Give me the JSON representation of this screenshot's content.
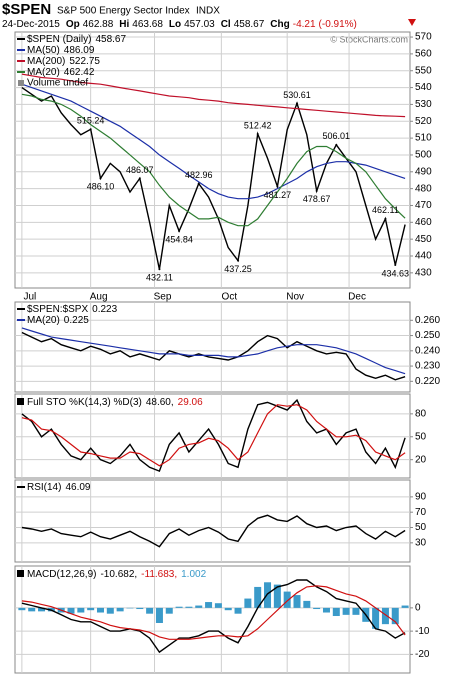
{
  "header": {
    "symbol": "$SPEN",
    "name": "S&P 500 Energy Sector Index",
    "exchange": "INDX",
    "date": "24-Dec-2015",
    "quote": [
      {
        "label": "Op",
        "value": 462.88
      },
      {
        "label": "Hi",
        "value": 463.68
      },
      {
        "label": "Lo",
        "value": 457.03
      },
      {
        "label": "Cl",
        "value": 458.67
      },
      {
        "label": "Chg",
        "value": -4.21,
        "note": "(-0.91%)"
      }
    ],
    "credit": "© StockCharts.com"
  },
  "chart_data": [
    {
      "type": "line",
      "xlim": [
        -0.7,
        39.5
      ],
      "xticks": [
        {
          "value": 0,
          "label": "Jul"
        },
        {
          "value": 7,
          "label": "Aug"
        },
        {
          "value": 13.5,
          "label": "Sep"
        },
        {
          "value": 20.3,
          "label": "Oct"
        },
        {
          "value": 27,
          "label": "Nov"
        },
        {
          "value": 33.3,
          "label": "Dec"
        }
      ],
      "ylim": [
        421,
        573
      ],
      "yticks": [
        430,
        440,
        450,
        460,
        470,
        480,
        490,
        500,
        510,
        520,
        530,
        540,
        550,
        560,
        570
      ],
      "grid": true,
      "series": [
        {
          "name": "$SPEN (Daily)",
          "color": "#000000",
          "values": [
            540,
            536,
            532,
            535,
            525,
            518,
            512,
            515.24,
            486.1,
            495,
            490,
            478,
            486.07,
            460,
            432.11,
            470,
            454.84,
            468,
            482.96,
            475,
            462,
            445,
            437.25,
            470,
            512.42,
            498,
            481.27,
            515,
            530.61,
            512,
            478.67,
            495,
            506.01,
            498,
            490,
            470,
            450,
            462.11,
            434.63,
            458.67
          ]
        },
        {
          "name": "MA(50)",
          "color": "#1c2fa8",
          "values": [
            542,
            540,
            538,
            536,
            534,
            532,
            529,
            526,
            523,
            520,
            517,
            513,
            509,
            505,
            500,
            496,
            492,
            488,
            484,
            480,
            477,
            475,
            474,
            474,
            475,
            477,
            480,
            483,
            486,
            490,
            493,
            495,
            496,
            496,
            495,
            494,
            492,
            490,
            488,
            486.09
          ]
        },
        {
          "name": "MA(200)",
          "color": "#c0102a",
          "values": [
            548,
            547,
            546,
            545.5,
            545,
            544,
            543,
            542.5,
            542,
            541,
            540,
            539,
            538,
            537,
            536,
            535,
            534.5,
            534,
            533,
            532.5,
            532,
            531,
            530.5,
            530,
            529.5,
            529,
            528.5,
            528,
            527.5,
            527,
            526.5,
            526,
            525.5,
            525,
            524.5,
            524,
            523.5,
            523.2,
            523,
            522.75
          ]
        },
        {
          "name": "MA(20)",
          "color": "#2e7d32",
          "values": [
            536,
            535,
            533,
            532,
            530,
            527,
            523,
            518,
            514,
            510,
            505,
            500,
            495,
            490,
            482,
            475,
            470,
            466,
            462,
            462,
            463,
            460,
            458,
            458,
            462,
            470,
            478,
            486,
            495,
            502,
            505,
            505,
            502,
            498,
            495,
            490,
            482,
            474,
            468,
            462.42
          ]
        }
      ],
      "legend_extra": "Volume undef",
      "annotations": [
        {
          "x": 7,
          "value": 515.24
        },
        {
          "x": 8,
          "value": 486.1,
          "label": "486.10"
        },
        {
          "x": 12,
          "value": 486.07
        },
        {
          "x": 14,
          "value": 432.11
        },
        {
          "x": 16,
          "value": 454.84
        },
        {
          "x": 18,
          "value": 482.96
        },
        {
          "x": 22,
          "value": 437.25
        },
        {
          "x": 24,
          "value": 512.42
        },
        {
          "x": 26,
          "value": 481.27
        },
        {
          "x": 28,
          "value": 530.61
        },
        {
          "x": 30,
          "value": 478.67
        },
        {
          "x": 32,
          "value": 506.01
        },
        {
          "x": 37,
          "value": 462.11
        },
        {
          "x": 38,
          "value": 434.63
        }
      ]
    },
    {
      "type": "line",
      "ylim": [
        0.213,
        0.272
      ],
      "yticks": [
        {
          "value": 0.22,
          "label": "0.220"
        },
        {
          "value": 0.23,
          "label": "0.230"
        },
        {
          "value": 0.24,
          "label": "0.240"
        },
        {
          "value": 0.25,
          "label": "0.250"
        },
        {
          "value": 0.26,
          "label": "0.260"
        }
      ],
      "grid": true,
      "series": [
        {
          "name": "$SPEN:$SPX",
          "color": "#000000",
          "values": [
            0.252,
            0.249,
            0.246,
            0.248,
            0.244,
            0.242,
            0.24,
            0.243,
            0.241,
            0.238,
            0.24,
            0.236,
            0.238,
            0.236,
            0.234,
            0.24,
            0.238,
            0.236,
            0.238,
            0.236,
            0.235,
            0.234,
            0.236,
            0.24,
            0.246,
            0.25,
            0.248,
            0.242,
            0.246,
            0.243,
            0.24,
            0.238,
            0.239,
            0.238,
            0.228,
            0.224,
            0.222,
            0.224,
            0.221,
            0.223
          ]
        },
        {
          "name": "MA(20)",
          "color": "#1c2fa8",
          "values": [
            0.255,
            0.253,
            0.251,
            0.249,
            0.248,
            0.247,
            0.246,
            0.245,
            0.244,
            0.243,
            0.242,
            0.241,
            0.24,
            0.239,
            0.238,
            0.238,
            0.238,
            0.237,
            0.237,
            0.237,
            0.237,
            0.236,
            0.236,
            0.237,
            0.238,
            0.24,
            0.242,
            0.243,
            0.244,
            0.244,
            0.244,
            0.243,
            0.242,
            0.24,
            0.238,
            0.235,
            0.232,
            0.229,
            0.227,
            0.225
          ]
        }
      ]
    },
    {
      "type": "line",
      "ylim": [
        -4,
        106
      ],
      "yticks": [
        20,
        50,
        80
      ],
      "grid": true,
      "legend_title": "Full STO %K(14,3) %D(3)",
      "series": [
        {
          "name": "%K",
          "color": "#000000",
          "value_label": "48.60,",
          "values": [
            80,
            70,
            50,
            60,
            40,
            25,
            20,
            35,
            20,
            15,
            25,
            40,
            20,
            10,
            5,
            40,
            55,
            30,
            45,
            60,
            40,
            15,
            10,
            60,
            92,
            95,
            90,
            85,
            98,
            70,
            55,
            60,
            40,
            55,
            60,
            30,
            15,
            35,
            10,
            48.6
          ]
        },
        {
          "name": "%D",
          "color": "#d01010",
          "values": [
            75,
            72,
            60,
            58,
            50,
            40,
            30,
            28,
            25,
            22,
            22,
            30,
            28,
            20,
            12,
            20,
            35,
            40,
            42,
            48,
            45,
            35,
            20,
            30,
            55,
            80,
            92,
            90,
            92,
            85,
            70,
            60,
            50,
            50,
            52,
            45,
            30,
            25,
            20,
            29.06
          ]
        }
      ]
    },
    {
      "type": "line",
      "ylim": [
        5,
        112
      ],
      "yticks": [
        30,
        50,
        70,
        90
      ],
      "grid": true,
      "series": [
        {
          "name": "RSI(14)",
          "color": "#000000",
          "values": [
            50,
            48,
            45,
            48,
            42,
            40,
            38,
            44,
            38,
            35,
            40,
            45,
            38,
            32,
            25,
            42,
            48,
            40,
            46,
            50,
            44,
            35,
            32,
            52,
            62,
            66,
            60,
            58,
            65,
            55,
            50,
            52,
            46,
            50,
            52,
            42,
            35,
            45,
            38,
            46.09
          ]
        }
      ]
    },
    {
      "type": "line",
      "ylim": [
        -28,
        18
      ],
      "yticks": [
        -20,
        -10,
        0
      ],
      "grid": true,
      "legend_title": "MACD(12,26,9)",
      "series": [
        {
          "name": "MACD",
          "color": "#000000",
          "value_label": "-10.682,",
          "values": [
            2,
            1,
            0,
            -1,
            -3,
            -5,
            -6,
            -6,
            -8,
            -10,
            -10,
            -9,
            -10,
            -13,
            -19,
            -16,
            -13,
            -13,
            -12,
            -10,
            -10,
            -13,
            -15,
            -8,
            0,
            6,
            9,
            10,
            12,
            12,
            9,
            7,
            4,
            3,
            2,
            -3,
            -9,
            -10,
            -13,
            -10.682
          ]
        },
        {
          "name": "Signal",
          "color": "#d01010",
          "value_label": "-11.683,",
          "values": [
            3,
            2.5,
            1.5,
            0.5,
            -1,
            -2.5,
            -4,
            -5,
            -6,
            -7.5,
            -8.5,
            -9,
            -9.5,
            -10.5,
            -12.5,
            -13.5,
            -13.5,
            -13.5,
            -13,
            -12.5,
            -12,
            -12,
            -12.5,
            -12,
            -9,
            -5,
            -1,
            3,
            6.5,
            9,
            9.5,
            9,
            7.5,
            6,
            5,
            3,
            0,
            -3,
            -6,
            -11.683
          ]
        },
        {
          "name": "Histogram",
          "kind": "bar",
          "color": "#3a9ac9",
          "values": [
            -1,
            -1.5,
            -1.5,
            -1.5,
            -2,
            -2.5,
            -2,
            -1,
            -2,
            -2.5,
            -1.5,
            0,
            -0.5,
            -2.5,
            -6.5,
            -2.5,
            0.5,
            0.5,
            1,
            2.5,
            2,
            -1,
            -2.5,
            4,
            9,
            11,
            10,
            7,
            5.5,
            3,
            -0.5,
            -2,
            -3.5,
            -3,
            -3,
            -6,
            -9,
            -7,
            -7,
            1.002
          ]
        }
      ]
    }
  ]
}
